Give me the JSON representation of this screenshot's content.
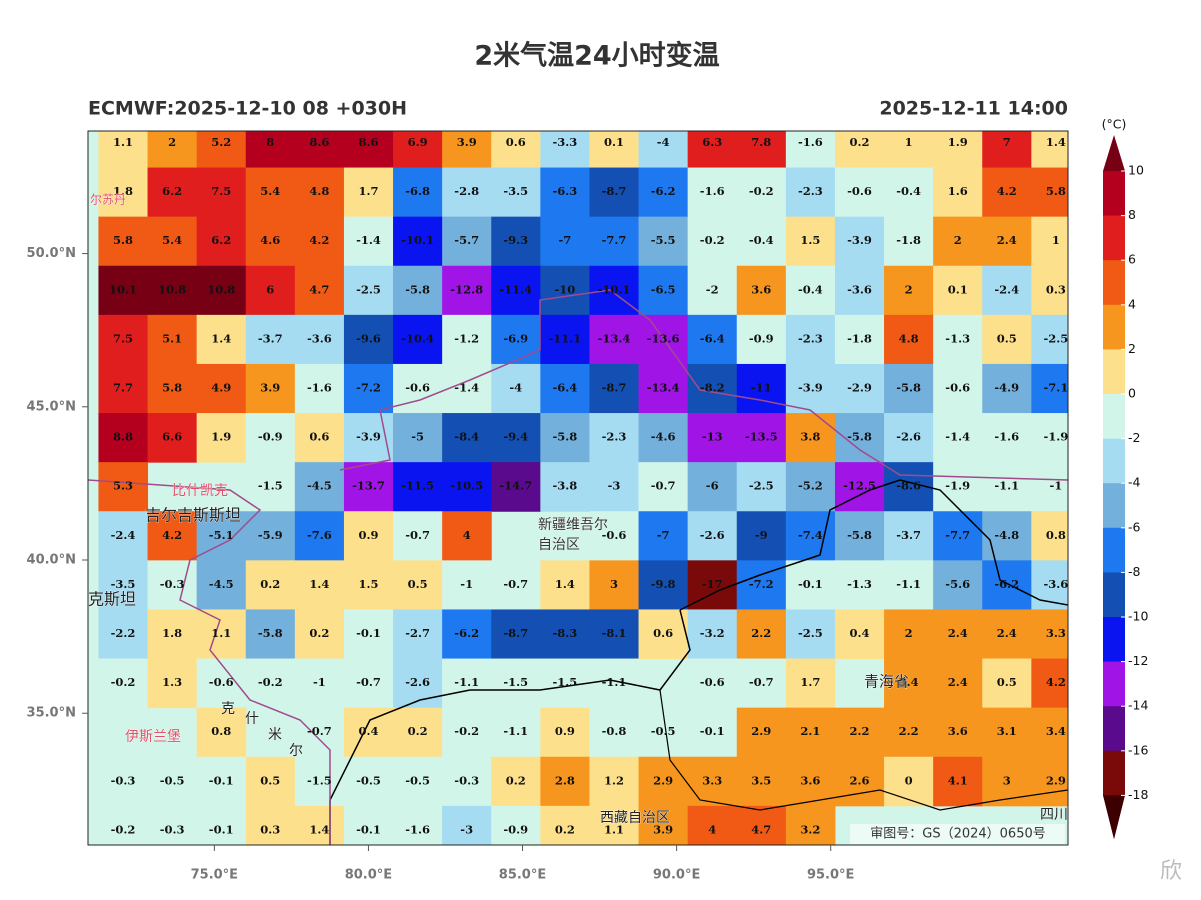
{
  "chart_data": {
    "type": "grid-map",
    "title": "2米气温24小时变温",
    "subtitle_left": "ECMWF:2025-12-10 08 +030H",
    "subtitle_right": "2025-12-11 14:00",
    "xlim": [
      70.9,
      102.7
    ],
    "ylim": [
      30.7,
      54.0
    ],
    "xticks": [
      {
        "value": 75,
        "label": "75.0°E"
      },
      {
        "value": 80,
        "label": "80.0°E"
      },
      {
        "value": 85,
        "label": "85.0°E"
      },
      {
        "value": 90,
        "label": "90.0°E"
      },
      {
        "value": 95,
        "label": "95.0°E"
      }
    ],
    "yticks": [
      {
        "value": 50,
        "label": "50.0°N"
      },
      {
        "value": 45,
        "label": "45.0°N"
      },
      {
        "value": 40,
        "label": "40.0°N"
      },
      {
        "value": 35,
        "label": "35.0°N"
      }
    ],
    "colorbar": {
      "unit": "(°C)",
      "ticks": [
        10,
        8,
        6,
        4,
        2,
        0,
        -2,
        -4,
        -6,
        -8,
        -10,
        -12,
        -14,
        -16,
        -18
      ],
      "colors": [
        "#b4001e",
        "#e01e1e",
        "#f05a14",
        "#f7961e",
        "#fde08c",
        "#d2f5ea",
        "#a6dcf2",
        "#74b0dc",
        "#1e78f0",
        "#1450b4",
        "#0a14f0",
        "#a014e6",
        "#5a0a8c",
        "#7a0a0a"
      ],
      "over_color": "#780014",
      "under_color": "#3c0000"
    },
    "grid": [
      [
        1.1,
        2.0,
        5.2,
        8.0,
        8.6,
        8.6,
        6.9,
        3.9,
        0.6,
        -3.3,
        0.1,
        -4.0,
        6.3,
        7.8,
        -1.6,
        0.2,
        1.0,
        1.9,
        7.0,
        1.4
      ],
      [
        1.8,
        6.2,
        7.5,
        5.4,
        4.8,
        1.7,
        -6.8,
        -2.8,
        -3.5,
        -6.3,
        -8.7,
        -6.2,
        -1.6,
        -0.2,
        -2.3,
        -0.6,
        -0.4,
        1.6,
        4.2,
        5.8
      ],
      [
        5.8,
        5.4,
        6.2,
        4.6,
        4.2,
        -1.4,
        -10.1,
        -5.7,
        -9.3,
        -7.0,
        -7.7,
        -5.5,
        -0.2,
        -0.4,
        1.5,
        -3.9,
        -1.8,
        2.0,
        2.4,
        1.0
      ],
      [
        10.1,
        10.8,
        10.8,
        6.0,
        4.7,
        -2.5,
        -5.8,
        -12.8,
        -11.4,
        -10.0,
        -10.1,
        -6.5,
        -2.0,
        3.6,
        -0.4,
        -3.6,
        2.0,
        0.1,
        -2.4,
        0.3
      ],
      [
        7.5,
        5.1,
        1.4,
        -3.7,
        -3.6,
        -9.6,
        -10.4,
        -1.2,
        -6.9,
        -11.1,
        -13.4,
        -13.6,
        -6.4,
        -0.9,
        -2.3,
        -1.8,
        4.8,
        -1.3,
        0.5,
        -2.5
      ],
      [
        7.7,
        5.8,
        4.9,
        3.9,
        -1.6,
        -7.2,
        -0.6,
        -1.4,
        -4.0,
        -6.4,
        -8.7,
        -13.4,
        -8.2,
        -11.0,
        -3.9,
        -2.9,
        -5.8,
        -0.6,
        -4.9,
        -7.1
      ],
      [
        8.8,
        6.6,
        1.9,
        -0.9,
        0.6,
        -3.9,
        -5.0,
        -8.4,
        -9.4,
        -5.8,
        -2.3,
        -4.6,
        -13.0,
        -13.5,
        3.8,
        -5.8,
        -2.6,
        -1.4,
        -1.6,
        -1.9
      ],
      [
        5.3,
        null,
        null,
        -1.5,
        -4.5,
        -13.7,
        -11.5,
        -10.5,
        -14.7,
        -3.8,
        -3.0,
        -0.7,
        -6.0,
        -2.5,
        -5.2,
        -12.5,
        -8.6,
        -1.9,
        -1.1,
        -1.0
      ],
      [
        -2.4,
        4.2,
        -5.1,
        -5.9,
        -7.6,
        0.9,
        -0.7,
        4.0,
        null,
        null,
        -0.6,
        -7.0,
        -2.6,
        -9.0,
        -7.4,
        -5.8,
        -3.7,
        -7.7,
        -4.8,
        0.8
      ],
      [
        -3.5,
        -0.3,
        -4.5,
        0.2,
        1.4,
        1.5,
        0.5,
        -1.0,
        -0.7,
        1.4,
        3.0,
        -9.8,
        -17.0,
        -7.2,
        -0.1,
        -1.3,
        -1.1,
        -5.6,
        -6.2,
        -3.6
      ],
      [
        -2.2,
        1.8,
        1.1,
        -5.8,
        0.2,
        -0.1,
        -2.7,
        -6.2,
        -8.7,
        -8.3,
        -8.1,
        0.6,
        -3.2,
        2.2,
        -2.5,
        0.4,
        2.0,
        2.4,
        2.4,
        3.3
      ],
      [
        -0.2,
        1.3,
        -0.6,
        -0.2,
        -1.0,
        -0.7,
        -2.6,
        -1.1,
        -1.5,
        -1.5,
        -1.1,
        null,
        -0.6,
        -0.7,
        1.7,
        null,
        3.4,
        2.4,
        0.5,
        4.2
      ],
      [
        null,
        null,
        0.8,
        null,
        -0.7,
        0.4,
        0.2,
        -0.2,
        -1.1,
        0.9,
        -0.8,
        -0.5,
        -0.1,
        2.9,
        2.1,
        2.2,
        2.2,
        3.6,
        3.1,
        3.4
      ],
      [
        -0.3,
        -0.5,
        -0.1,
        0.5,
        -1.5,
        -0.5,
        -0.5,
        -0.3,
        0.2,
        2.8,
        1.2,
        2.9,
        3.3,
        3.5,
        3.6,
        2.6,
        0.0,
        4.1,
        3.0,
        2.9
      ],
      [
        -0.2,
        -0.3,
        -0.1,
        0.3,
        1.4,
        -0.1,
        -1.6,
        -3.0,
        -0.9,
        0.2,
        1.1,
        3.9,
        4.0,
        4.7,
        3.2,
        null,
        null,
        null,
        null,
        null
      ]
    ],
    "places": [
      "尔苏丹",
      "比什凯克",
      "吉尔吉斯斯坦",
      "新疆维吾尔",
      "自治区",
      "克斯坦",
      "伊斯兰堡",
      "克",
      "什",
      "米",
      "尔",
      "青海省",
      "西藏自治区",
      "四川省"
    ],
    "approval": "审图号：GS（2024）0650号",
    "watermark": "欣"
  }
}
